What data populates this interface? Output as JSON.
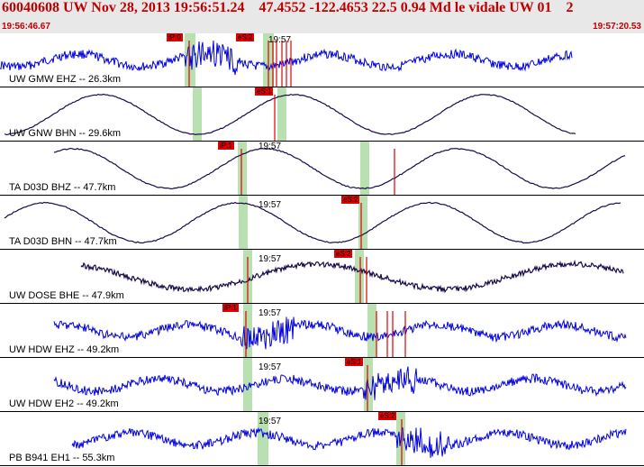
{
  "header": {
    "title": "60040608 UW Nov 28, 2013 19:56:51.24    47.4552 -122.4653 22.5 0.94 Md le vidale UW 01    2",
    "time_start": "19:56:46.67",
    "time_end": "19:57:20.53"
  },
  "colors": {
    "header_text": "#c00000",
    "trace_vertical": "#0000e0",
    "trace_long_period": "#1a0a4a",
    "pick_marker": "#e00000",
    "window_band": "#b8e0b0"
  },
  "panels": [
    {
      "label": "UW GMW EHZ -- 26.3km",
      "tick": "19:57",
      "pick": "iP:0",
      "pick2": "eS:2",
      "trace": "hf"
    },
    {
      "label": "UW GNW BHN -- 29.6km",
      "tick": "",
      "pick": "eS:1",
      "trace": "lp"
    },
    {
      "label": "TA D03D BHZ -- 47.7km",
      "tick": "19:57",
      "pick": "iP:1",
      "trace": "lp"
    },
    {
      "label": "TA D03D BHN -- 47.7km",
      "tick": "19:57",
      "pick": "eS:2",
      "trace": "lp"
    },
    {
      "label": "UW DOSE BHE -- 47.9km",
      "tick": "19:57",
      "pick": "eS:2",
      "trace": "mix"
    },
    {
      "label": "UW HDW EHZ -- 49.2km",
      "tick": "19:57",
      "pick": "iP:1",
      "trace": "hf"
    },
    {
      "label": "UW HDW EH2 -- 49.2km",
      "tick": "19:57",
      "pick": "eS:1",
      "trace": "hf"
    },
    {
      "label": "PB B941 EH1 -- 55.3km",
      "tick": "19:57",
      "pick": "eS:2",
      "trace": "hf"
    }
  ]
}
